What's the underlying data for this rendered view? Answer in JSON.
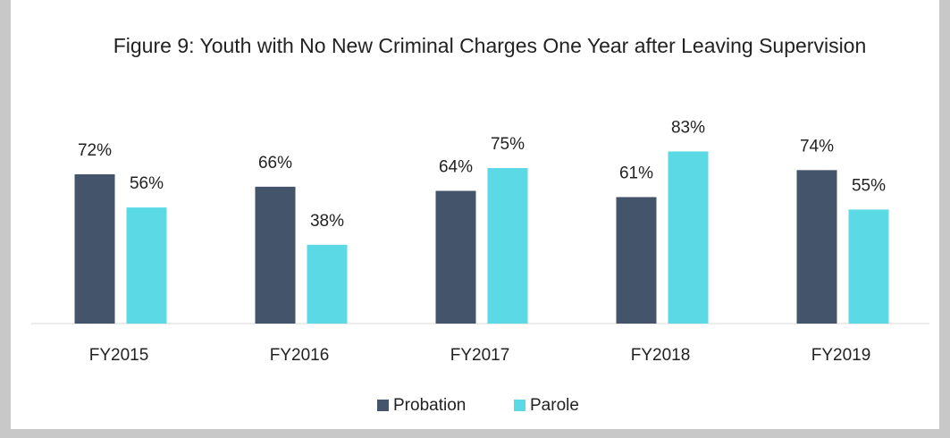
{
  "chart_data": {
    "type": "bar",
    "title": "Figure 9: Youth with No New Criminal Charges One Year after Leaving Supervision",
    "categories": [
      "FY2015",
      "FY2016",
      "FY2017",
      "FY2018",
      "FY2019"
    ],
    "series": [
      {
        "name": "Probation",
        "color": "#44546a",
        "values": [
          72,
          66,
          64,
          61,
          74
        ],
        "value_labels": [
          "72%",
          "66%",
          "64%",
          "61%",
          "74%"
        ]
      },
      {
        "name": "Parole",
        "color": "#5bd9e5",
        "values": [
          56,
          38,
          75,
          83,
          55
        ],
        "value_labels": [
          "56%",
          "38%",
          "75%",
          "83%",
          "55%"
        ]
      }
    ],
    "ylim": [
      0,
      100
    ],
    "legend": "bottom"
  }
}
